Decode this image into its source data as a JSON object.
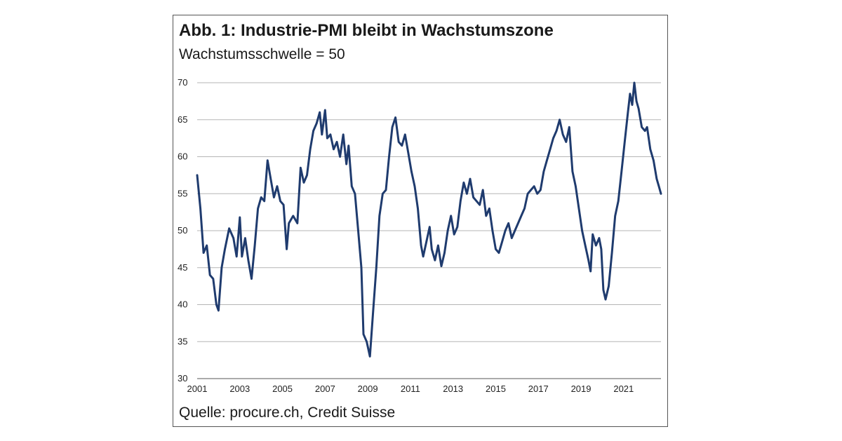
{
  "chart_data": {
    "type": "line",
    "title": "Abb. 1: Industrie-PMI bleibt in Wachstumszone",
    "subtitle": "Wachstumsschwelle = 50",
    "source": "Quelle: procure.ch, Credit Suisse",
    "xlabel": "",
    "ylabel": "",
    "xlim": [
      2001,
      2022.75
    ],
    "ylim": [
      30,
      70
    ],
    "x_ticks": [
      "2001",
      "2003",
      "2005",
      "2007",
      "2009",
      "2011",
      "2013",
      "2015",
      "2017",
      "2019",
      "2021"
    ],
    "y_ticks": [
      "30",
      "35",
      "40",
      "45",
      "50",
      "55",
      "60",
      "65",
      "70"
    ],
    "grid": "horizontal",
    "line_color": "#1f3b6e",
    "series": [
      {
        "name": "",
        "points": [
          [
            2001.0,
            57.5
          ],
          [
            2001.15,
            53
          ],
          [
            2001.3,
            47
          ],
          [
            2001.45,
            48
          ],
          [
            2001.6,
            44
          ],
          [
            2001.75,
            43.5
          ],
          [
            2001.9,
            40
          ],
          [
            2002.0,
            39.2
          ],
          [
            2002.15,
            45
          ],
          [
            2002.3,
            47.5
          ],
          [
            2002.5,
            50.3
          ],
          [
            2002.7,
            49
          ],
          [
            2002.85,
            46.5
          ],
          [
            2003.0,
            51.8
          ],
          [
            2003.1,
            46.5
          ],
          [
            2003.25,
            49
          ],
          [
            2003.4,
            46
          ],
          [
            2003.55,
            43.5
          ],
          [
            2003.7,
            48
          ],
          [
            2003.85,
            53
          ],
          [
            2004.0,
            54.5
          ],
          [
            2004.15,
            54
          ],
          [
            2004.3,
            59.5
          ],
          [
            2004.45,
            57
          ],
          [
            2004.6,
            54.5
          ],
          [
            2004.75,
            56
          ],
          [
            2004.9,
            54
          ],
          [
            2005.05,
            53.5
          ],
          [
            2005.2,
            47.5
          ],
          [
            2005.3,
            51
          ],
          [
            2005.5,
            52
          ],
          [
            2005.7,
            51
          ],
          [
            2005.85,
            58.5
          ],
          [
            2006.0,
            56.5
          ],
          [
            2006.15,
            57.5
          ],
          [
            2006.3,
            61
          ],
          [
            2006.45,
            63.5
          ],
          [
            2006.6,
            64.5
          ],
          [
            2006.75,
            66
          ],
          [
            2006.85,
            63
          ],
          [
            2007.0,
            66.3
          ],
          [
            2007.1,
            62.5
          ],
          [
            2007.25,
            63
          ],
          [
            2007.4,
            61
          ],
          [
            2007.55,
            62
          ],
          [
            2007.7,
            60
          ],
          [
            2007.85,
            63
          ],
          [
            2008.0,
            59
          ],
          [
            2008.1,
            61.5
          ],
          [
            2008.25,
            56
          ],
          [
            2008.4,
            55
          ],
          [
            2008.55,
            50
          ],
          [
            2008.7,
            45
          ],
          [
            2008.8,
            36
          ],
          [
            2008.95,
            35
          ],
          [
            2009.1,
            33
          ],
          [
            2009.25,
            39
          ],
          [
            2009.4,
            45
          ],
          [
            2009.55,
            52
          ],
          [
            2009.7,
            55
          ],
          [
            2009.85,
            55.5
          ],
          [
            2010.0,
            60
          ],
          [
            2010.15,
            64
          ],
          [
            2010.3,
            65.3
          ],
          [
            2010.45,
            62
          ],
          [
            2010.6,
            61.5
          ],
          [
            2010.75,
            63
          ],
          [
            2010.9,
            60.5
          ],
          [
            2011.05,
            58
          ],
          [
            2011.2,
            56
          ],
          [
            2011.35,
            53
          ],
          [
            2011.5,
            48
          ],
          [
            2011.6,
            46.5
          ],
          [
            2011.75,
            48.5
          ],
          [
            2011.9,
            50.5
          ],
          [
            2012.0,
            47.5
          ],
          [
            2012.15,
            46
          ],
          [
            2012.3,
            48
          ],
          [
            2012.45,
            45.2
          ],
          [
            2012.6,
            47
          ],
          [
            2012.75,
            50
          ],
          [
            2012.9,
            52
          ],
          [
            2013.05,
            49.5
          ],
          [
            2013.2,
            50.5
          ],
          [
            2013.35,
            54
          ],
          [
            2013.5,
            56.5
          ],
          [
            2013.65,
            55
          ],
          [
            2013.8,
            57
          ],
          [
            2013.95,
            54.5
          ],
          [
            2014.1,
            54
          ],
          [
            2014.25,
            53.5
          ],
          [
            2014.4,
            55.5
          ],
          [
            2014.55,
            52
          ],
          [
            2014.7,
            53
          ],
          [
            2014.85,
            50
          ],
          [
            2015.0,
            47.5
          ],
          [
            2015.15,
            47
          ],
          [
            2015.3,
            48.5
          ],
          [
            2015.45,
            50
          ],
          [
            2015.6,
            51
          ],
          [
            2015.75,
            49
          ],
          [
            2015.9,
            50
          ],
          [
            2016.05,
            51
          ],
          [
            2016.2,
            52
          ],
          [
            2016.35,
            53
          ],
          [
            2016.5,
            55
          ],
          [
            2016.65,
            55.5
          ],
          [
            2016.8,
            56
          ],
          [
            2016.95,
            55
          ],
          [
            2017.1,
            55.5
          ],
          [
            2017.25,
            58
          ],
          [
            2017.4,
            59.5
          ],
          [
            2017.55,
            61
          ],
          [
            2017.7,
            62.5
          ],
          [
            2017.85,
            63.5
          ],
          [
            2018.0,
            65
          ],
          [
            2018.15,
            63
          ],
          [
            2018.3,
            62
          ],
          [
            2018.45,
            64
          ],
          [
            2018.6,
            58
          ],
          [
            2018.75,
            56
          ],
          [
            2018.9,
            53
          ],
          [
            2019.05,
            50
          ],
          [
            2019.2,
            48
          ],
          [
            2019.35,
            46
          ],
          [
            2019.45,
            44.5
          ],
          [
            2019.55,
            49.5
          ],
          [
            2019.7,
            48
          ],
          [
            2019.85,
            49
          ],
          [
            2019.95,
            47.5
          ],
          [
            2020.05,
            42
          ],
          [
            2020.15,
            40.7
          ],
          [
            2020.3,
            42.5
          ],
          [
            2020.45,
            47
          ],
          [
            2020.6,
            52
          ],
          [
            2020.75,
            54
          ],
          [
            2020.9,
            58
          ],
          [
            2021.05,
            62
          ],
          [
            2021.2,
            66
          ],
          [
            2021.3,
            68.5
          ],
          [
            2021.4,
            67
          ],
          [
            2021.5,
            70
          ],
          [
            2021.6,
            67.5
          ],
          [
            2021.7,
            66.5
          ],
          [
            2021.85,
            64
          ],
          [
            2022.0,
            63.5
          ],
          [
            2022.1,
            64
          ],
          [
            2022.25,
            61
          ],
          [
            2022.4,
            59.5
          ],
          [
            2022.55,
            57
          ],
          [
            2022.65,
            56
          ],
          [
            2022.75,
            55
          ]
        ]
      }
    ]
  }
}
